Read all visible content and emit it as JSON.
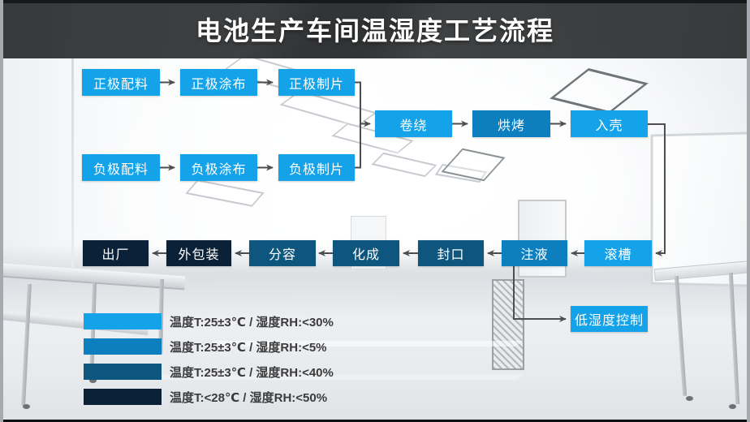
{
  "slide": {
    "title": "电池生产车间温湿度工艺流程"
  },
  "colors": {
    "tier1": "#14a3e8",
    "tier2": "#0d7fbe",
    "tier3": "#0e567e",
    "tier4": "#0a2138",
    "connector": "#4c4e50",
    "header_bg": "#353739",
    "legend_text": "#3b3b3b"
  },
  "flowchart": {
    "nodes": [
      {
        "id": "zhengji-peiliao",
        "label": "正极配料",
        "tier": "tier1"
      },
      {
        "id": "zhengji-tubu",
        "label": "正极涂布",
        "tier": "tier1"
      },
      {
        "id": "zhengji-zhipian",
        "label": "正极制片",
        "tier": "tier1"
      },
      {
        "id": "fuji-peiliao",
        "label": "负极配料",
        "tier": "tier1"
      },
      {
        "id": "fuji-tubu",
        "label": "负极涂布",
        "tier": "tier1"
      },
      {
        "id": "fuji-zhipian",
        "label": "负极制片",
        "tier": "tier1"
      },
      {
        "id": "juanrao",
        "label": "卷绕",
        "tier": "tier1"
      },
      {
        "id": "hongkao",
        "label": "烘烤",
        "tier": "tier2"
      },
      {
        "id": "ruke",
        "label": "入壳",
        "tier": "tier1"
      },
      {
        "id": "chuchang",
        "label": "出厂",
        "tier": "tier4"
      },
      {
        "id": "waibaozhuang",
        "label": "外包装",
        "tier": "tier4"
      },
      {
        "id": "fenrong",
        "label": "分容",
        "tier": "tier3"
      },
      {
        "id": "huacheng",
        "label": "化成",
        "tier": "tier3"
      },
      {
        "id": "fengkou",
        "label": "封口",
        "tier": "tier3"
      },
      {
        "id": "zhuye",
        "label": "注液",
        "tier": "tier2"
      },
      {
        "id": "guncao",
        "label": "滚槽",
        "tier": "tier1"
      },
      {
        "id": "dishidu-kongzhi",
        "label": "低湿度控制",
        "tier": "tier1"
      }
    ],
    "flow_order_top": "正极/负极配料 → 涂布 → 制片 → 卷绕 → 烘烤 → 入壳",
    "flow_order_bottom": "滚槽 → 注液 → 封口 → 化成 → 分容 → 外包装 → 出厂"
  },
  "legend": {
    "items": [
      {
        "tier": "tier1",
        "label": "温度T:25±3℃ / 湿度RH:<30%"
      },
      {
        "tier": "tier2",
        "label": "温度T:25±3℃ / 湿度RH:<5%"
      },
      {
        "tier": "tier3",
        "label": "温度T:25±3℃ / 湿度RH:<40%"
      },
      {
        "tier": "tier4",
        "label": "温度T:<28℃ / 湿度RH:<50%"
      }
    ]
  }
}
